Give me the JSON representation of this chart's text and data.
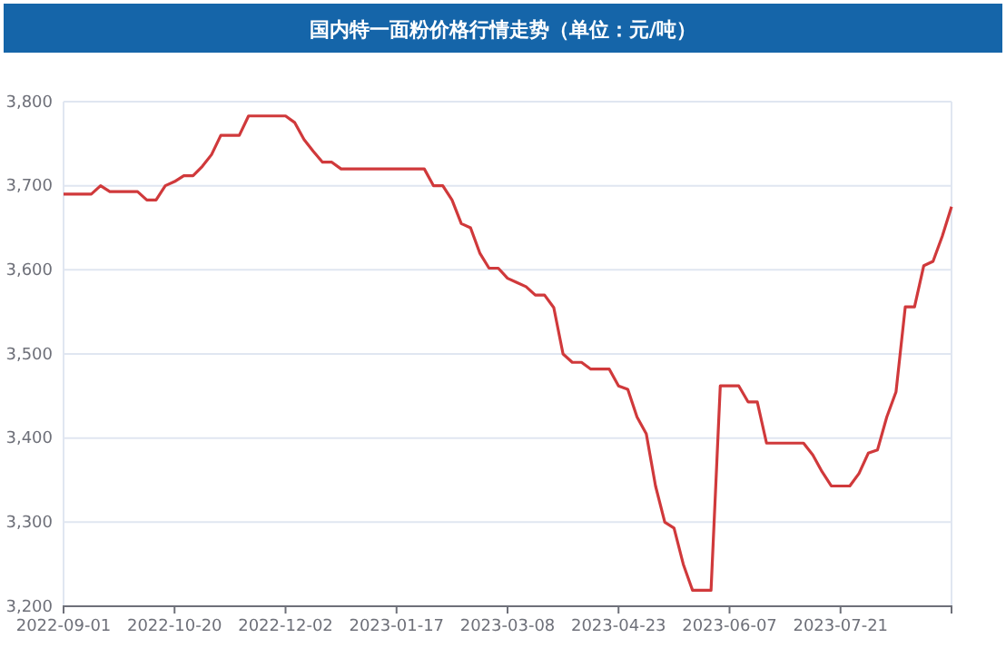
{
  "chart_data": {
    "type": "line",
    "title": "国内特一面粉价格行情走势（单位：元/吨）",
    "categories": [
      "2022-09-01",
      null,
      null,
      null,
      null,
      null,
      null,
      null,
      null,
      null,
      null,
      null,
      "2022-10-20",
      null,
      null,
      null,
      null,
      null,
      null,
      null,
      null,
      null,
      null,
      null,
      "2022-12-02",
      null,
      null,
      null,
      null,
      null,
      null,
      null,
      null,
      null,
      null,
      null,
      "2023-01-17",
      null,
      null,
      null,
      null,
      null,
      null,
      null,
      null,
      null,
      null,
      null,
      "2023-03-08",
      null,
      null,
      null,
      null,
      null,
      null,
      null,
      null,
      null,
      null,
      null,
      "2023-04-23",
      null,
      null,
      null,
      null,
      null,
      null,
      null,
      null,
      null,
      null,
      null,
      "2023-06-07",
      null,
      null,
      null,
      null,
      null,
      null,
      null,
      null,
      null,
      null,
      null,
      "2023-07-21",
      null,
      null,
      null,
      null,
      null,
      null,
      null,
      null,
      null,
      null,
      null,
      null
    ],
    "series": [
      {
        "color": "#d0393b",
        "values": [
          3690,
          3690,
          3690,
          3690,
          3700,
          3693,
          3693,
          3693,
          3693,
          3683,
          3683,
          3700,
          3705,
          3712,
          3712,
          3723,
          3737,
          3760,
          3760,
          3760,
          3783,
          3783,
          3783,
          3783,
          3783,
          3775,
          3755,
          3741,
          3728,
          3728,
          3720,
          3720,
          3720,
          3720,
          3720,
          3720,
          3720,
          3720,
          3720,
          3720,
          3700,
          3700,
          3683,
          3655,
          3650,
          3620,
          3602,
          3602,
          3590,
          3585,
          3580,
          3570,
          3570,
          3555,
          3500,
          3490,
          3490,
          3482,
          3482,
          3482,
          3462,
          3458,
          3425,
          3405,
          3343,
          3300,
          3293,
          3250,
          3219,
          3219,
          3219,
          3462,
          3462,
          3462,
          3443,
          3443,
          3394,
          3394,
          3394,
          3394,
          3394,
          3380,
          3360,
          3343,
          3343,
          3343,
          3358,
          3382,
          3386,
          3425,
          3455,
          3556,
          3556,
          3605,
          3610,
          3640,
          3675
        ]
      }
    ],
    "ylim": [
      3200,
      3800
    ],
    "yticks": [
      {
        "value": 3200,
        "label": "3,200"
      },
      {
        "value": 3300,
        "label": "3,300"
      },
      {
        "value": 3400,
        "label": "3,400"
      },
      {
        "value": 3500,
        "label": "3,500"
      },
      {
        "value": 3600,
        "label": "3,600"
      },
      {
        "value": 3700,
        "label": "3,700"
      },
      {
        "value": 3800,
        "label": "3,800"
      }
    ],
    "grid": "y",
    "marker": "none",
    "line_style": "solid"
  }
}
